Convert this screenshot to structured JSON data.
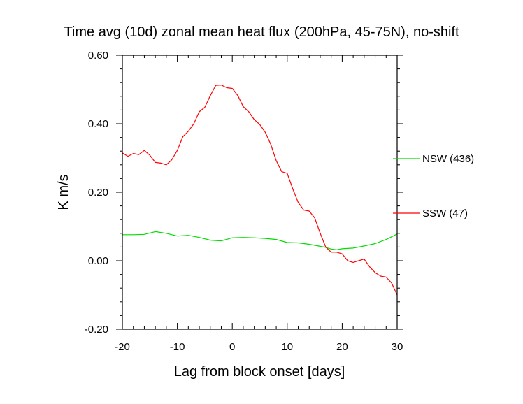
{
  "chart_data": {
    "type": "line",
    "title": "Time avg (10d) zonal mean heat flux (200hPa, 45-75N), no-shift",
    "xlabel": "Lag from block onset [days]",
    "ylabel": "K m/s",
    "xlim": [
      -20,
      30
    ],
    "ylim": [
      -0.2,
      0.6
    ],
    "x_ticks": [
      -20,
      -10,
      0,
      10,
      20,
      30
    ],
    "x_tick_labels": [
      "-20",
      "-10",
      "0",
      "10",
      "20",
      "30"
    ],
    "y_ticks": [
      -0.2,
      0.0,
      0.2,
      0.4,
      0.6
    ],
    "y_tick_labels": [
      "-0.20",
      "0.00",
      "0.20",
      "0.40",
      "0.60"
    ],
    "legend_position": "right, outside plot",
    "series": [
      {
        "name": "NSW (436)",
        "color": "#00dd00",
        "x": [
          -20,
          -18,
          -16,
          -14,
          -12,
          -10,
          -8,
          -6,
          -4,
          -2,
          0,
          2,
          4,
          6,
          8,
          10,
          12,
          14,
          16,
          17,
          18,
          19,
          20,
          22,
          24,
          26,
          28,
          30
        ],
        "y": [
          0.076,
          0.076,
          0.077,
          0.085,
          0.08,
          0.072,
          0.074,
          0.068,
          0.06,
          0.058,
          0.067,
          0.068,
          0.067,
          0.065,
          0.062,
          0.053,
          0.052,
          0.048,
          0.042,
          0.039,
          0.034,
          0.032,
          0.035,
          0.037,
          0.043,
          0.05,
          0.062,
          0.078
        ]
      },
      {
        "name": "SSW (47)",
        "color": "#ff0000",
        "x": [
          -20,
          -19,
          -18,
          -17,
          -16,
          -15,
          -14,
          -13,
          -12,
          -11,
          -10,
          -9,
          -8,
          -7,
          -6,
          -5,
          -4,
          -3,
          -2,
          -1,
          0,
          1,
          2,
          3,
          4,
          5,
          6,
          7,
          8,
          9,
          10,
          11,
          12,
          13,
          14,
          15,
          16,
          17,
          18,
          19,
          20,
          21,
          22,
          23,
          24,
          25,
          26,
          27,
          28,
          29,
          30
        ],
        "y": [
          0.315,
          0.305,
          0.313,
          0.31,
          0.322,
          0.308,
          0.287,
          0.285,
          0.28,
          0.295,
          0.322,
          0.362,
          0.378,
          0.4,
          0.435,
          0.448,
          0.482,
          0.512,
          0.513,
          0.505,
          0.503,
          0.482,
          0.45,
          0.435,
          0.412,
          0.398,
          0.375,
          0.34,
          0.292,
          0.26,
          0.255,
          0.21,
          0.17,
          0.148,
          0.145,
          0.125,
          0.08,
          0.04,
          0.025,
          0.025,
          0.02,
          0.0,
          -0.005,
          0.0,
          0.005,
          -0.018,
          -0.035,
          -0.045,
          -0.048,
          -0.065,
          -0.1
        ]
      }
    ]
  }
}
